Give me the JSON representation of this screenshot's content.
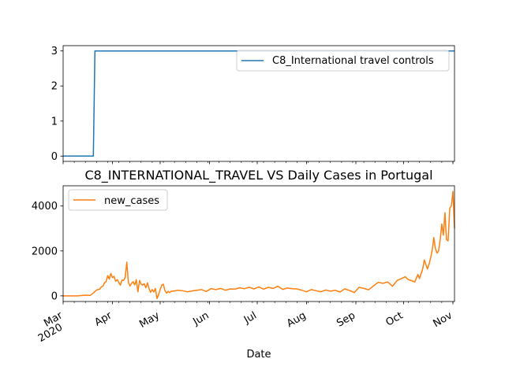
{
  "chart_data": [
    {
      "type": "line",
      "title": "",
      "xlabel": "",
      "ylabel": "",
      "ylim": [
        -0.15,
        3.15
      ],
      "yticks": [
        0,
        1,
        2,
        3
      ],
      "xlim": [
        "2020-03-01",
        "2020-11-02"
      ],
      "legend": "upper-right",
      "grid": false,
      "series": [
        {
          "name": "C8_International travel controls",
          "color": "#1f77b4",
          "x": [
            "2020-03-01",
            "2020-03-20",
            "2020-03-21",
            "2020-11-02"
          ],
          "values": [
            0,
            0,
            3,
            3
          ]
        }
      ]
    },
    {
      "type": "line",
      "title": "C8_INTERNATIONAL_TRAVEL VS Daily Cases in Portugal",
      "xlabel": "Date",
      "ylabel": "",
      "ylim": [
        -250,
        4900
      ],
      "yticks": [
        0,
        2000,
        4000
      ],
      "xlim": [
        "2020-03-01",
        "2020-11-02"
      ],
      "legend": "upper-left",
      "grid": false,
      "x_ticks": [
        {
          "date": "2020-03-01",
          "label": "Mar",
          "sublabel": "2020"
        },
        {
          "date": "2020-04-01",
          "label": "Apr"
        },
        {
          "date": "2020-05-01",
          "label": "May"
        },
        {
          "date": "2020-06-01",
          "label": "Jun"
        },
        {
          "date": "2020-07-01",
          "label": "Jul"
        },
        {
          "date": "2020-08-01",
          "label": "Aug"
        },
        {
          "date": "2020-09-01",
          "label": "Sep"
        },
        {
          "date": "2020-10-01",
          "label": "Oct"
        },
        {
          "date": "2020-11-01",
          "label": "Nov"
        }
      ],
      "series": [
        {
          "name": "new_cases",
          "color": "#ff7f0e",
          "x": [
            "2020-03-01",
            "2020-03-10",
            "2020-03-15",
            "2020-03-18",
            "2020-03-20",
            "2020-03-22",
            "2020-03-24",
            "2020-03-25",
            "2020-03-26",
            "2020-03-27",
            "2020-03-28",
            "2020-03-29",
            "2020-03-30",
            "2020-03-31",
            "2020-04-01",
            "2020-04-02",
            "2020-04-03",
            "2020-04-04",
            "2020-04-05",
            "2020-04-06",
            "2020-04-07",
            "2020-04-08",
            "2020-04-09",
            "2020-04-10",
            "2020-04-11",
            "2020-04-12",
            "2020-04-13",
            "2020-04-14",
            "2020-04-15",
            "2020-04-16",
            "2020-04-17",
            "2020-04-18",
            "2020-04-19",
            "2020-04-20",
            "2020-04-21",
            "2020-04-22",
            "2020-04-23",
            "2020-04-24",
            "2020-04-25",
            "2020-04-26",
            "2020-04-27",
            "2020-04-28",
            "2020-04-29",
            "2020-04-30",
            "2020-05-01",
            "2020-05-02",
            "2020-05-03",
            "2020-05-04",
            "2020-05-05",
            "2020-05-06",
            "2020-05-07",
            "2020-05-08",
            "2020-05-10",
            "2020-05-12",
            "2020-05-15",
            "2020-05-18",
            "2020-05-21",
            "2020-05-24",
            "2020-05-27",
            "2020-05-30",
            "2020-06-02",
            "2020-06-05",
            "2020-06-08",
            "2020-06-11",
            "2020-06-14",
            "2020-06-17",
            "2020-06-20",
            "2020-06-23",
            "2020-06-26",
            "2020-06-29",
            "2020-07-02",
            "2020-07-05",
            "2020-07-08",
            "2020-07-11",
            "2020-07-14",
            "2020-07-17",
            "2020-07-20",
            "2020-07-23",
            "2020-07-26",
            "2020-07-29",
            "2020-08-01",
            "2020-08-04",
            "2020-08-07",
            "2020-08-10",
            "2020-08-13",
            "2020-08-16",
            "2020-08-19",
            "2020-08-22",
            "2020-08-25",
            "2020-08-28",
            "2020-08-31",
            "2020-09-03",
            "2020-09-06",
            "2020-09-09",
            "2020-09-12",
            "2020-09-15",
            "2020-09-18",
            "2020-09-21",
            "2020-09-24",
            "2020-09-27",
            "2020-09-30",
            "2020-10-02",
            "2020-10-04",
            "2020-10-06",
            "2020-10-08",
            "2020-10-10",
            "2020-10-11",
            "2020-10-13",
            "2020-10-14",
            "2020-10-16",
            "2020-10-17",
            "2020-10-18",
            "2020-10-19",
            "2020-10-20",
            "2020-10-21",
            "2020-10-22",
            "2020-10-23",
            "2020-10-24",
            "2020-10-25",
            "2020-10-26",
            "2020-10-27",
            "2020-10-28",
            "2020-10-29",
            "2020-10-30",
            "2020-10-31",
            "2020-11-01",
            "2020-11-02"
          ],
          "values": [
            0,
            0,
            30,
            20,
            130,
            260,
            300,
            400,
            430,
            580,
            630,
            900,
            750,
            1000,
            810,
            870,
            650,
            720,
            600,
            480,
            710,
            690,
            820,
            1500,
            600,
            440,
            560,
            630,
            490,
            720,
            180,
            690,
            520,
            480,
            540,
            360,
            580,
            320,
            160,
            280,
            170,
            330,
            -120,
            50,
            290,
            480,
            520,
            240,
            120,
            200,
            150,
            210,
            220,
            250,
            230,
            180,
            220,
            250,
            280,
            200,
            320,
            280,
            330,
            250,
            310,
            300,
            360,
            320,
            380,
            310,
            400,
            300,
            380,
            330,
            430,
            290,
            350,
            320,
            310,
            250,
            180,
            280,
            230,
            180,
            260,
            210,
            250,
            170,
            310,
            240,
            150,
            380,
            330,
            270,
            440,
            600,
            560,
            620,
            430,
            690,
            780,
            850,
            720,
            680,
            620,
            950,
            770,
            1200,
            1600,
            1200,
            1400,
            1700,
            2050,
            2600,
            2100,
            1900,
            2000,
            2500,
            3200,
            2700,
            3700,
            2500,
            2450,
            3900,
            4000,
            4650,
            3000
          ]
        }
      ]
    }
  ]
}
